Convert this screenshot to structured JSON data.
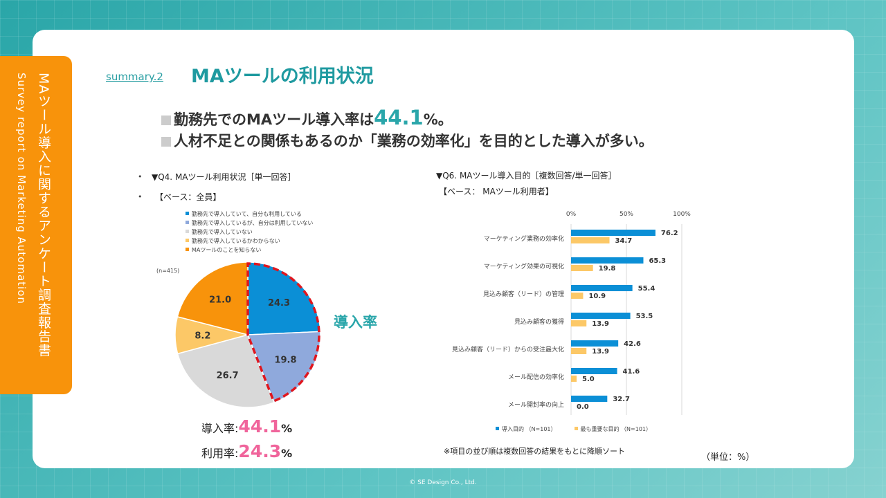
{
  "sidebar": {
    "title_jp": "MAツール導入に関するアンケート調査報告書",
    "title_en": "Survey report on Marketing Automation"
  },
  "header": {
    "summary_link": "summary.2",
    "title": "MAツールの利用状況"
  },
  "headlines": {
    "line1_pre": "勤務先でのMAツール導入率は",
    "line1_value": "44.1",
    "line1_post": "%。",
    "line2": "人材不足との関係もあるのか「業務の効率化」を目的とした導入が多い。"
  },
  "q4": {
    "bullet": "•",
    "title": "▼Q4. MAツール利用状況［単一回答］",
    "base": "【ベース：全員】",
    "n": "(n=415)",
    "donyu_label": "導入率",
    "rate1_label": "導入率:",
    "rate1_value": "44.1",
    "rate2_label": "利用率:",
    "rate2_value": "24.3",
    "pct": "%"
  },
  "q6": {
    "title": "▼Q6. MAツール導入目的［複数回答/単一回答］",
    "base": "【ベース： MAツール利用者】",
    "note": "※項目の並び順は複数回答の結果をもとに降順ソート",
    "unit": "（単位：%）"
  },
  "footer": {
    "copyright": "© SE Design Co., Ltd."
  },
  "colors": {
    "teal": "#2aa6aa",
    "orange": "#f8930b",
    "pink": "#f0649b",
    "pie_use": "#0b8fd6",
    "pie_not_use": "#8fa9dc",
    "pie_no": "#d9d9d9",
    "pie_unknown": "#fcc867",
    "pie_unaware": "#f8930b",
    "bar_blue": "#0b8fd6",
    "bar_yellow": "#fcc867",
    "highlight": "#e0161e"
  },
  "chart_data": [
    {
      "type": "pie",
      "labels": [
        "勤務先で導入していて、自分も利用している",
        "勤務先で導入しているが、自分は利用していない",
        "勤務先で導入していない",
        "勤務先で導入しているかわからない",
        "MAツールのことを知らない"
      ],
      "values": [
        24.3,
        19.8,
        26.7,
        8.2,
        21.0
      ],
      "display_values": [
        "24.3",
        "19.8",
        "26.7",
        "8.2",
        "21.0"
      ],
      "highlighted": [
        0,
        1
      ],
      "legend_position": "top"
    },
    {
      "type": "bar",
      "orientation": "horizontal",
      "categories": [
        "マーケティング業務の効率化",
        "マーケティング効果の可視化",
        "見込み顧客（リード）の管理",
        "見込み顧客の獲得",
        "見込み顧客（リード）からの受注最大化",
        "メール配信の効率化",
        "メール開封率の向上"
      ],
      "series": [
        {
          "name": "導入目的 （N=101）",
          "values": [
            76.2,
            65.3,
            55.4,
            53.5,
            42.6,
            41.6,
            32.7
          ]
        },
        {
          "name": "最も重要な目的 （N=101）",
          "values": [
            34.7,
            19.8,
            10.9,
            13.9,
            13.9,
            5.0,
            0.0
          ]
        }
      ],
      "xlim": [
        0,
        100
      ],
      "ticks": [
        "0%",
        "50%",
        "100%"
      ],
      "tick_values": [
        0,
        50,
        100
      ],
      "grid": true,
      "legend_position": "bottom"
    }
  ]
}
